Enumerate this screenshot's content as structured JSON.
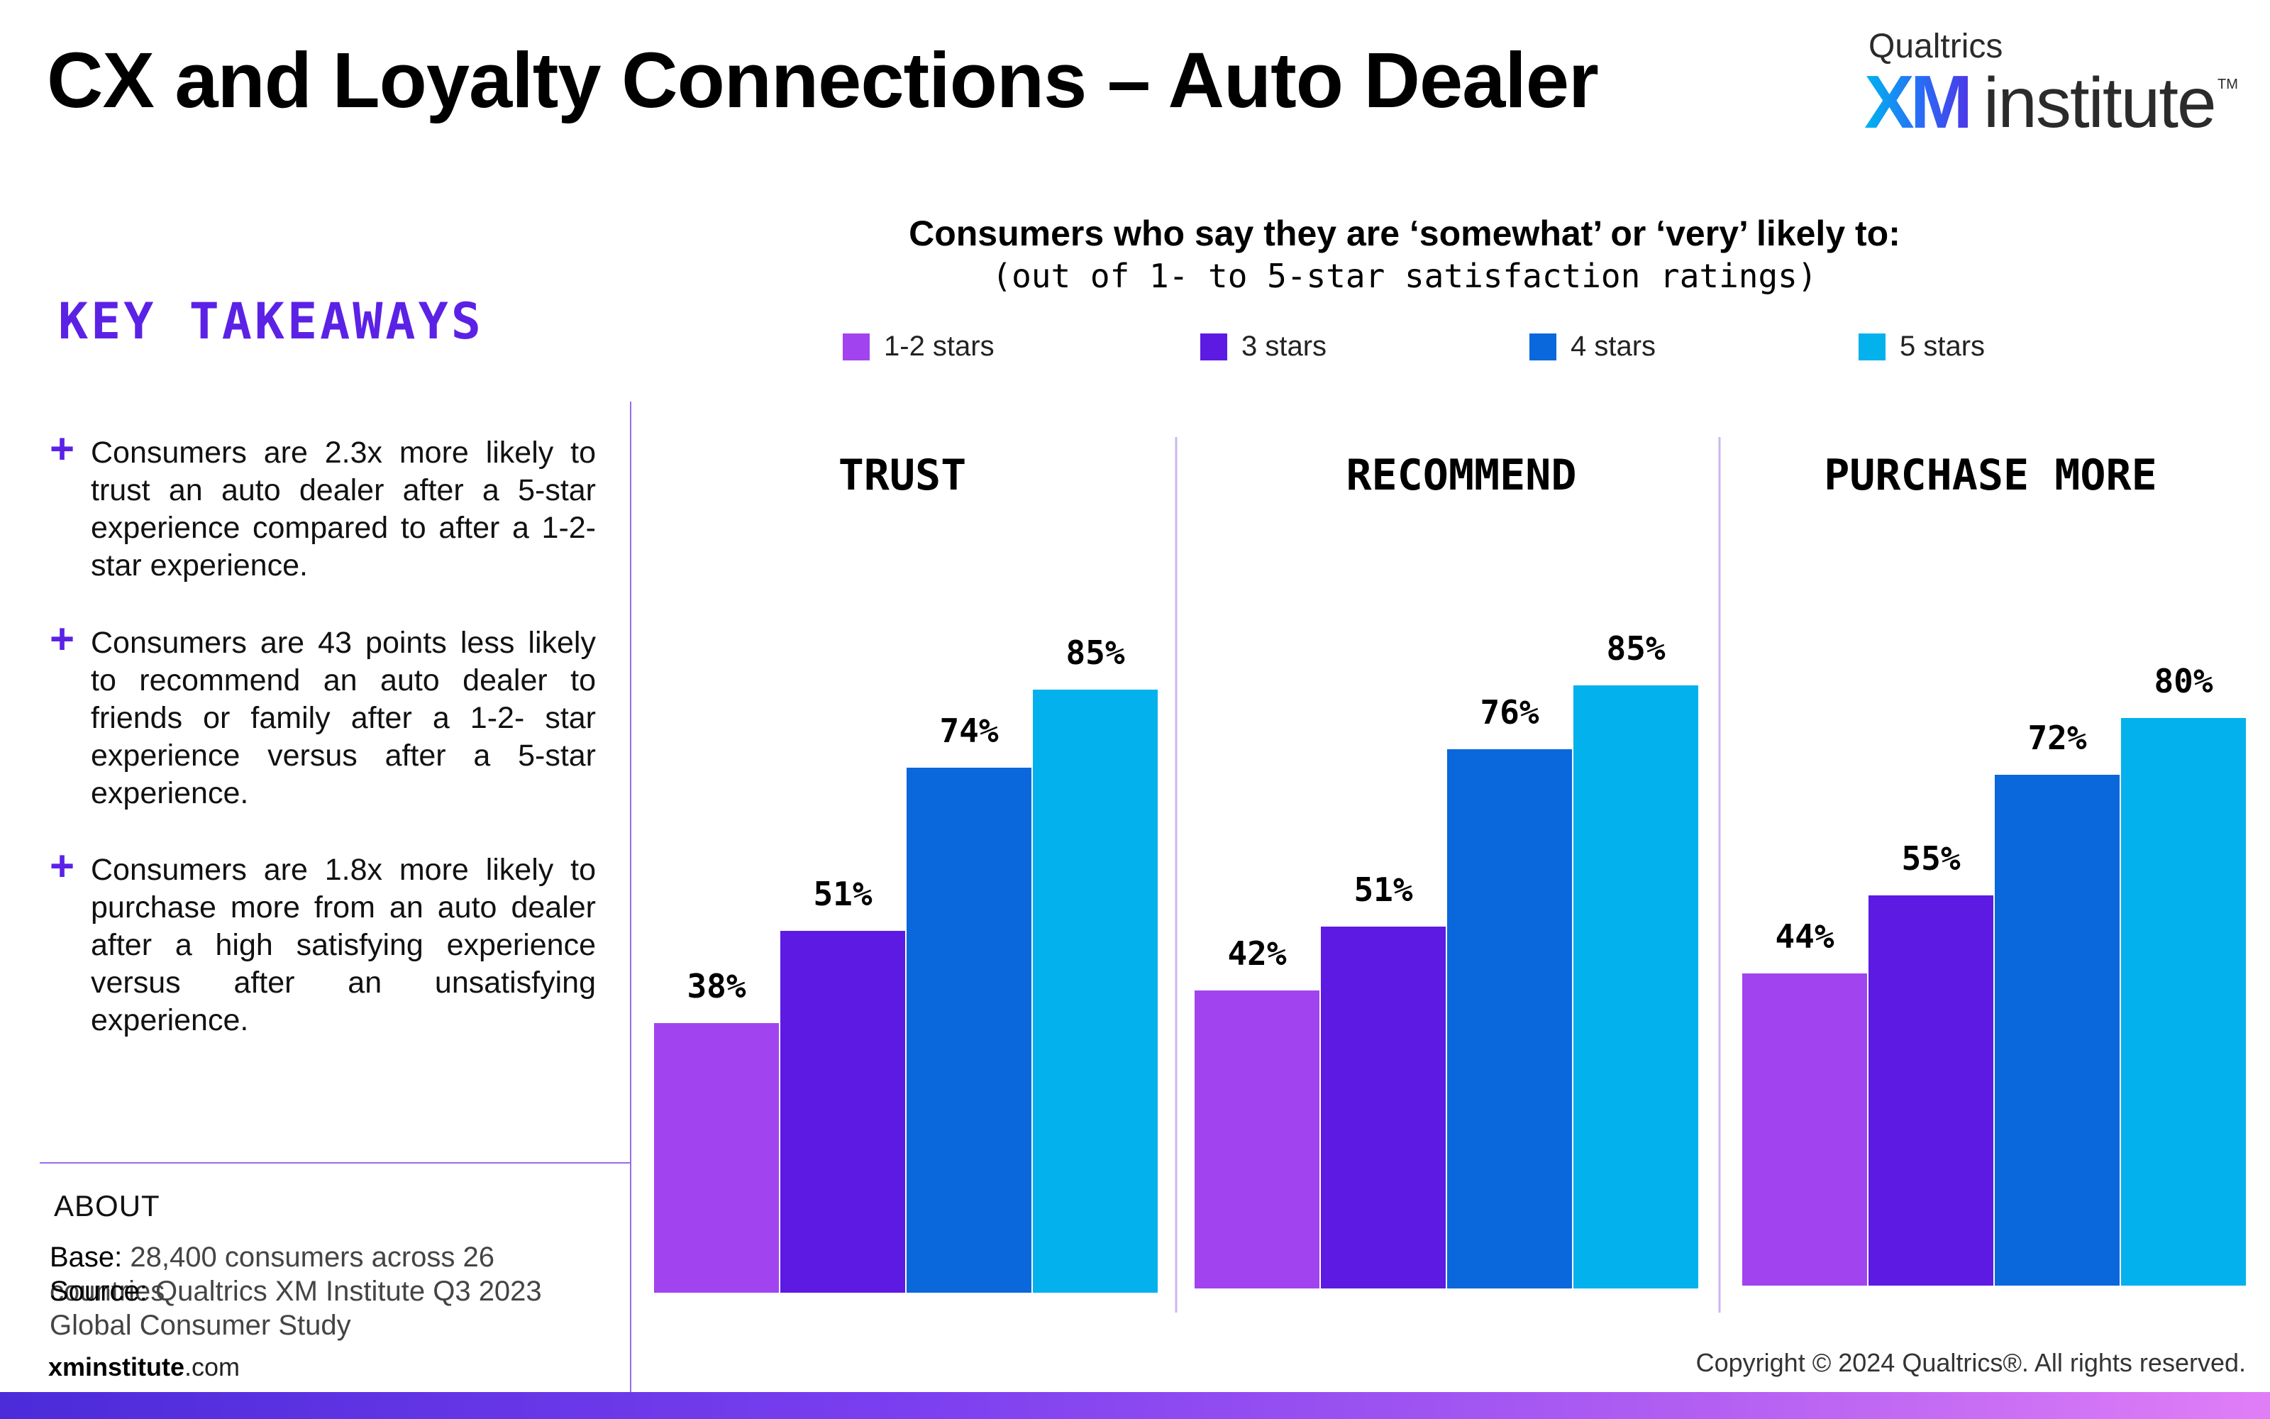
{
  "title": "CX and Loyalty Connections – Auto Dealer",
  "logo": {
    "top": "Qualtrics",
    "xm": "XM",
    "institute": "institute",
    "tm": "TM"
  },
  "key_takeaways": {
    "heading": "KEY TAKEAWAYS",
    "items": [
      {
        "marker": "+",
        "text": "Consumers are 2.3x more likely to trust an auto dealer after a 5-star experience compared to after a 1-2-star experience."
      },
      {
        "marker": "+",
        "text": "Consumers are 43 points less likely to recommend an auto dealer to friends or family after a 1-2- star experience versus after a 5-star experience."
      },
      {
        "marker": "+",
        "text": "Consumers are 1.8x more likely to purchase more from an auto dealer after a high satisfying experience versus after an unsatisfying experience."
      }
    ]
  },
  "about": {
    "label": "ABOUT",
    "base_label": "Base:",
    "base_value": "28,400 consumers across 26 countries",
    "source_label": "Source:",
    "source_value": "Qualtrics XM Institute Q3 2023 Global Consumer Study"
  },
  "footer": {
    "site_bold": "xminstitute",
    "site_rest": ".com",
    "copyright": "Copyright © 2024 Qualtrics®. All rights reserved."
  },
  "chart_data": {
    "type": "bar",
    "title": "Consumers who say they are ‘somewhat’ or ‘very’ likely to:",
    "subtitle": "(out of 1- to 5-star satisfaction ratings)",
    "categories": [
      "TRUST",
      "RECOMMEND",
      "PURCHASE MORE"
    ],
    "series": [
      {
        "name": "1-2 stars",
        "color": "#a243f0",
        "values": [
          38,
          42,
          44
        ]
      },
      {
        "name": "3 stars",
        "color": "#5c1ae3",
        "values": [
          51,
          51,
          55
        ]
      },
      {
        "name": "4 stars",
        "color": "#0a67dc",
        "values": [
          74,
          76,
          72
        ]
      },
      {
        "name": "5 stars",
        "color": "#03b1ec",
        "values": [
          85,
          85,
          80
        ]
      }
    ],
    "value_suffix": "%",
    "ylim": [
      0,
      100
    ],
    "legend_position": "top",
    "grid": false
  }
}
